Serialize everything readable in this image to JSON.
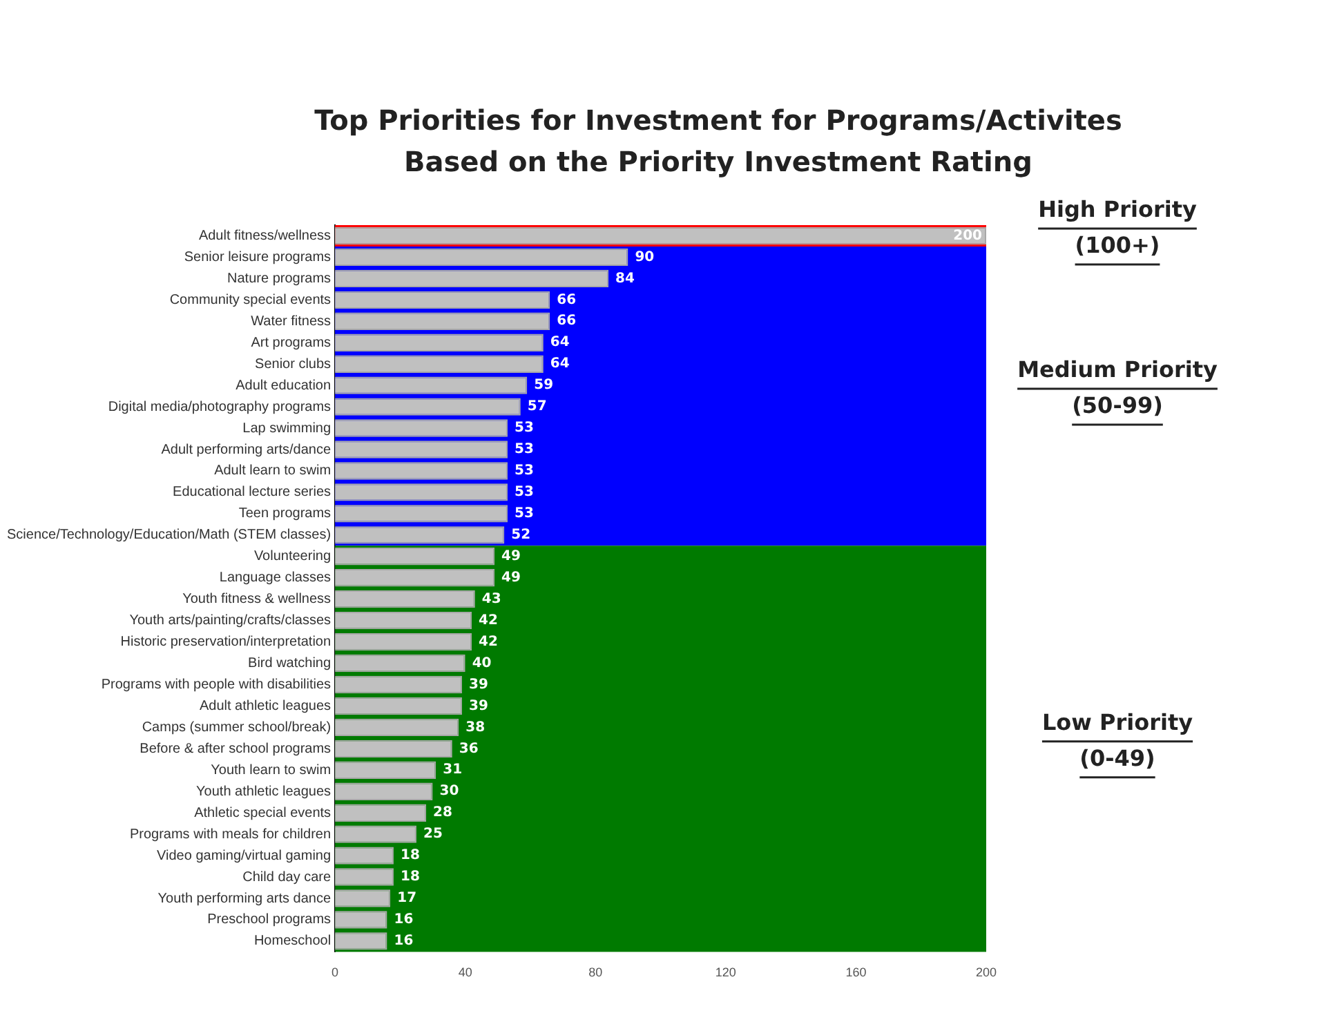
{
  "chart_data": {
    "type": "bar",
    "orientation": "horizontal",
    "title": "Top Priorities for Investment for Programs/Activites Based on the Priority Investment Rating",
    "categories": [
      "Adult fitness/wellness",
      "Senior leisure programs",
      "Nature programs",
      "Community special events",
      "Water fitness",
      "Art programs",
      "Senior clubs",
      "Adult education",
      "Digital media/photography programs",
      "Lap swimming",
      "Adult performing arts/dance",
      "Adult learn to swim",
      "Educational lecture series",
      "Teen programs",
      "Science/Technology/Education/Math (STEM classes)",
      "Volunteering",
      "Language classes",
      "Youth fitness & wellness",
      "Youth arts/painting/crafts/classes",
      "Historic preservation/interpretation",
      "Bird watching",
      "Programs with people with disabilities",
      "Adult athletic leagues",
      "Camps (summer school/break)",
      "Before & after school programs",
      "Youth learn to swim",
      "Youth athletic leagues",
      "Athletic special events",
      "Programs with meals for children",
      "Video gaming/virtual gaming",
      "Child day care",
      "Youth performing arts dance",
      "Preschool programs",
      "Homeschool"
    ],
    "values": [
      200,
      90,
      84,
      66,
      66,
      64,
      64,
      59,
      57,
      53,
      53,
      53,
      53,
      53,
      52,
      49,
      49,
      43,
      42,
      42,
      40,
      39,
      39,
      38,
      36,
      31,
      30,
      28,
      25,
      18,
      18,
      17,
      16,
      16
    ],
    "color": "#c0c0c0",
    "data_labels": true,
    "grid": false,
    "xlim": [
      0,
      200
    ],
    "xticks": [
      0,
      40,
      80,
      120,
      160,
      200
    ],
    "bands": [
      {
        "axis": "y",
        "from": "Adult fitness/wellness",
        "to": "Adult fitness/wellness",
        "color": "#ff0000",
        "label": "High Priority\n(100+)"
      },
      {
        "axis": "y",
        "from": "Senior leisure programs",
        "to": "Science/Technology/Education/Math (STEM classes)",
        "color": "#0000ff",
        "label": "Medium Priority\n(50-99)"
      },
      {
        "axis": "y",
        "from": "Volunteering",
        "to": "Homeschool",
        "color": "#007a00",
        "label": "Low Priority\n(0-49)"
      }
    ]
  }
}
